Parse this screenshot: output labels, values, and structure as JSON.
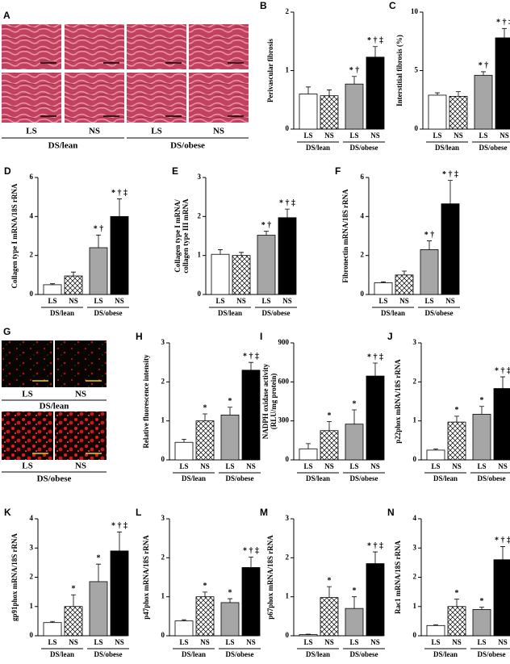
{
  "chart_data": [
    {
      "type": "bar",
      "panel": "B",
      "ylabel": "Perivascular fibrosis",
      "categories": [
        "LS",
        "NS",
        "LS",
        "NS"
      ],
      "groups": [
        "DS/lean",
        "DS/obese"
      ],
      "values": [
        0.6,
        0.57,
        0.77,
        1.23
      ],
      "errors": [
        0.12,
        0.1,
        0.13,
        0.18
      ],
      "annotations": [
        null,
        null,
        "* †",
        "* † ‡"
      ],
      "colors": [
        "#ffffff",
        "#ffffff",
        "#a6a6a6",
        "#000000"
      ],
      "hatch": [
        false,
        true,
        false,
        false
      ],
      "ylim": [
        0,
        2
      ],
      "yticks": [
        0,
        1,
        2
      ]
    },
    {
      "type": "bar",
      "panel": "C",
      "ylabel": "Interstitial fibrosis (%)",
      "categories": [
        "LS",
        "NS",
        "LS",
        "NS"
      ],
      "groups": [
        "DS/lean",
        "DS/obese"
      ],
      "values": [
        2.9,
        2.8,
        4.6,
        7.8
      ],
      "errors": [
        0.2,
        0.4,
        0.3,
        0.8
      ],
      "annotations": [
        null,
        null,
        "* †",
        "* † ‡"
      ],
      "colors": [
        "#ffffff",
        "#ffffff",
        "#a6a6a6",
        "#000000"
      ],
      "hatch": [
        false,
        true,
        false,
        false
      ],
      "ylim": [
        0,
        10
      ],
      "yticks": [
        0,
        5,
        10
      ]
    },
    {
      "type": "bar",
      "panel": "D",
      "ylabel": "Collagen type I mRNA/18S rRNA",
      "categories": [
        "LS",
        "NS",
        "LS",
        "NS"
      ],
      "groups": [
        "DS/lean",
        "DS/obese"
      ],
      "values": [
        0.5,
        0.95,
        2.4,
        4.0
      ],
      "errors": [
        0.05,
        0.2,
        0.65,
        0.9
      ],
      "annotations": [
        null,
        null,
        "* †",
        "* † ‡"
      ],
      "colors": [
        "#ffffff",
        "#ffffff",
        "#a6a6a6",
        "#000000"
      ],
      "hatch": [
        false,
        true,
        false,
        false
      ],
      "ylim": [
        0,
        6
      ],
      "yticks": [
        0,
        2,
        4,
        6
      ]
    },
    {
      "type": "bar",
      "panel": "E",
      "ylabel": [
        "Collagen type I mRNA/",
        "collagen type III mRNA"
      ],
      "categories": [
        "LS",
        "NS",
        "LS",
        "NS"
      ],
      "groups": [
        "DS/lean",
        "DS/obese"
      ],
      "values": [
        1.03,
        1.0,
        1.52,
        1.97
      ],
      "errors": [
        0.12,
        0.08,
        0.1,
        0.22
      ],
      "annotations": [
        null,
        null,
        "* †",
        "* † ‡"
      ],
      "colors": [
        "#ffffff",
        "#ffffff",
        "#a6a6a6",
        "#000000"
      ],
      "hatch": [
        false,
        true,
        false,
        false
      ],
      "ylim": [
        0,
        3
      ],
      "yticks": [
        0,
        1,
        2,
        3
      ]
    },
    {
      "type": "bar",
      "panel": "F",
      "ylabel": "Fibronectin mRNA/18S rRNA",
      "categories": [
        "LS",
        "NS",
        "LS",
        "NS"
      ],
      "groups": [
        "DS/lean",
        "DS/obese"
      ],
      "values": [
        0.6,
        1.0,
        2.3,
        4.65
      ],
      "errors": [
        0.05,
        0.2,
        0.45,
        1.2
      ],
      "annotations": [
        null,
        null,
        "* †",
        "* † ‡"
      ],
      "colors": [
        "#ffffff",
        "#ffffff",
        "#a6a6a6",
        "#000000"
      ],
      "hatch": [
        false,
        true,
        false,
        false
      ],
      "ylim": [
        0,
        6
      ],
      "yticks": [
        0,
        2,
        4,
        6
      ]
    },
    {
      "type": "bar",
      "panel": "H",
      "ylabel": "Relative fluorescence intensity",
      "categories": [
        "LS",
        "NS",
        "LS",
        "NS"
      ],
      "groups": [
        "DS/lean",
        "DS/obese"
      ],
      "values": [
        0.45,
        1.0,
        1.15,
        2.3
      ],
      "errors": [
        0.08,
        0.18,
        0.2,
        0.2
      ],
      "annotations": [
        null,
        "*",
        "*",
        "* † ‡"
      ],
      "colors": [
        "#ffffff",
        "#ffffff",
        "#a6a6a6",
        "#000000"
      ],
      "hatch": [
        false,
        true,
        false,
        false
      ],
      "ylim": [
        0,
        3
      ],
      "yticks": [
        0,
        1,
        2,
        3
      ]
    },
    {
      "type": "bar",
      "panel": "I",
      "ylabel": [
        "NADPH oxidase activity",
        "(RLU/mg protein)"
      ],
      "categories": [
        "LS",
        "NS",
        "LS",
        "NS"
      ],
      "groups": [
        "DS/lean",
        "DS/obese"
      ],
      "values": [
        85,
        225,
        275,
        645
      ],
      "errors": [
        40,
        70,
        110,
        100
      ],
      "annotations": [
        null,
        "*",
        "*",
        "* † ‡"
      ],
      "colors": [
        "#ffffff",
        "#ffffff",
        "#a6a6a6",
        "#000000"
      ],
      "hatch": [
        false,
        true,
        false,
        false
      ],
      "ylim": [
        0,
        900
      ],
      "yticks": [
        0,
        300,
        600,
        900
      ]
    },
    {
      "type": "bar",
      "panel": "J",
      "ylabel": "p22phox mRNA/18S rRNA",
      "categories": [
        "LS",
        "NS",
        "LS",
        "NS"
      ],
      "groups": [
        "DS/lean",
        "DS/obese"
      ],
      "values": [
        0.25,
        0.97,
        1.17,
        1.83
      ],
      "errors": [
        0.03,
        0.15,
        0.2,
        0.3
      ],
      "annotations": [
        null,
        "*",
        "*",
        "* † ‡"
      ],
      "colors": [
        "#ffffff",
        "#ffffff",
        "#a6a6a6",
        "#000000"
      ],
      "hatch": [
        false,
        true,
        false,
        false
      ],
      "ylim": [
        0,
        3
      ],
      "yticks": [
        0,
        1,
        2,
        3
      ]
    },
    {
      "type": "bar",
      "panel": "K",
      "ylabel": "gp91phox mRNA/18S rRNA",
      "categories": [
        "LS",
        "NS",
        "LS",
        "NS"
      ],
      "groups": [
        "DS/lean",
        "DS/obese"
      ],
      "values": [
        0.45,
        1.0,
        1.85,
        2.9
      ],
      "errors": [
        0.04,
        0.4,
        0.6,
        0.65
      ],
      "annotations": [
        null,
        "*",
        "*",
        "* † ‡"
      ],
      "colors": [
        "#ffffff",
        "#ffffff",
        "#a6a6a6",
        "#000000"
      ],
      "hatch": [
        false,
        true,
        false,
        false
      ],
      "ylim": [
        0,
        4
      ],
      "yticks": [
        0,
        1,
        2,
        3,
        4
      ]
    },
    {
      "type": "bar",
      "panel": "L",
      "ylabel": "p47phox mRNA/18S rRNA",
      "categories": [
        "LS",
        "NS",
        "LS",
        "NS"
      ],
      "groups": [
        "DS/lean",
        "DS/obese"
      ],
      "values": [
        0.38,
        1.0,
        0.85,
        1.75
      ],
      "errors": [
        0.03,
        0.12,
        0.1,
        0.27
      ],
      "annotations": [
        null,
        "*",
        "*",
        "* † ‡"
      ],
      "colors": [
        "#ffffff",
        "#ffffff",
        "#a6a6a6",
        "#000000"
      ],
      "hatch": [
        false,
        true,
        false,
        false
      ],
      "ylim": [
        0,
        3
      ],
      "yticks": [
        0,
        1,
        2,
        3
      ]
    },
    {
      "type": "bar",
      "panel": "M",
      "ylabel": "p67phox mRNA/18S rRNA",
      "categories": [
        "LS",
        "NS",
        "LS",
        "NS"
      ],
      "groups": [
        "DS/lean",
        "DS/obese"
      ],
      "values": [
        0.03,
        0.98,
        0.7,
        1.85
      ],
      "errors": [
        0.01,
        0.28,
        0.3,
        0.3
      ],
      "annotations": [
        null,
        "*",
        "*",
        "* † ‡"
      ],
      "colors": [
        "#ffffff",
        "#ffffff",
        "#a6a6a6",
        "#000000"
      ],
      "hatch": [
        false,
        true,
        false,
        false
      ],
      "ylim": [
        0,
        3
      ],
      "yticks": [
        0,
        1,
        2,
        3
      ]
    },
    {
      "type": "bar",
      "panel": "N",
      "ylabel": "Rac1 mRNA/18S rRNA",
      "categories": [
        "LS",
        "NS",
        "LS",
        "NS"
      ],
      "groups": [
        "DS/lean",
        "DS/obese"
      ],
      "values": [
        0.35,
        1.0,
        0.9,
        2.6
      ],
      "errors": [
        0.03,
        0.25,
        0.08,
        0.45
      ],
      "annotations": [
        null,
        "*",
        "*",
        "* † ‡"
      ],
      "colors": [
        "#ffffff",
        "#ffffff",
        "#a6a6a6",
        "#000000"
      ],
      "hatch": [
        false,
        true,
        false,
        false
      ],
      "ylim": [
        0,
        4
      ],
      "yticks": [
        0,
        1,
        2,
        3,
        4
      ]
    }
  ],
  "micrographs": [
    {
      "panel": "A",
      "labels": [
        "LS",
        "NS",
        "LS",
        "NS"
      ],
      "groups": [
        "DS/lean",
        "DS/obese"
      ]
    },
    {
      "panel": "G",
      "labels": [
        "LS",
        "NS",
        "LS",
        "NS"
      ],
      "groups": [
        "DS/lean",
        "DS/obese"
      ]
    }
  ]
}
